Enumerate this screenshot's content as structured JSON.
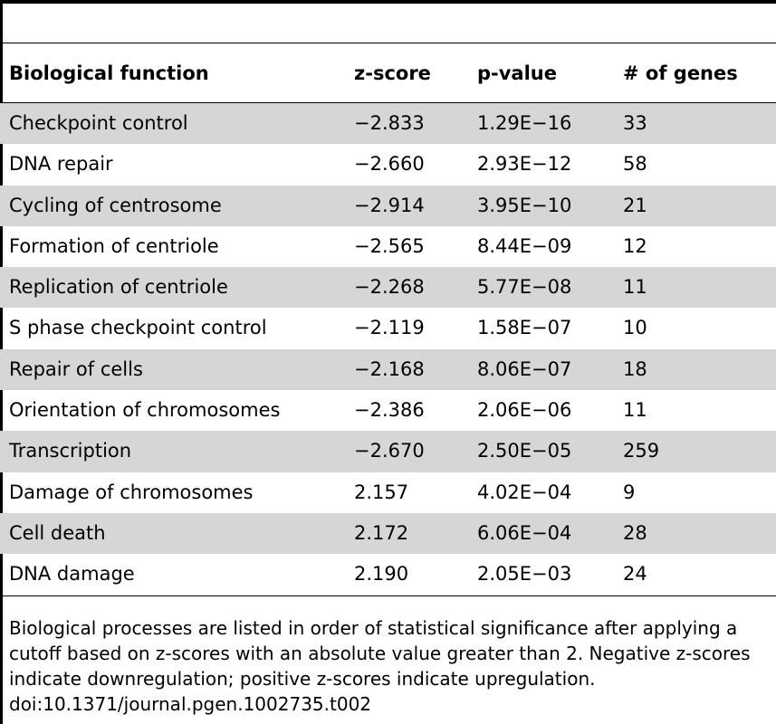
{
  "table": {
    "columns": {
      "function": "Biological function",
      "z_score": "z-score",
      "p_value": "p-value",
      "genes": "# of genes"
    },
    "rows": [
      {
        "function": "Checkpoint control",
        "z_score": "−2.833",
        "p_value": "1.29E−16",
        "genes": "33"
      },
      {
        "function": "DNA repair",
        "z_score": "−2.660",
        "p_value": "2.93E−12",
        "genes": "58"
      },
      {
        "function": "Cycling of centrosome",
        "z_score": "−2.914",
        "p_value": "3.95E−10",
        "genes": "21"
      },
      {
        "function": "Formation of centriole",
        "z_score": "−2.565",
        "p_value": "8.44E−09",
        "genes": "12"
      },
      {
        "function": "Replication of centriole",
        "z_score": "−2.268",
        "p_value": "5.77E−08",
        "genes": "11"
      },
      {
        "function": "S phase checkpoint control",
        "z_score": "−2.119",
        "p_value": "1.58E−07",
        "genes": "10"
      },
      {
        "function": "Repair of cells",
        "z_score": "−2.168",
        "p_value": "8.06E−07",
        "genes": "18"
      },
      {
        "function": "Orientation of chromosomes",
        "z_score": "−2.386",
        "p_value": "2.06E−06",
        "genes": "11"
      },
      {
        "function": "Transcription",
        "z_score": "−2.670",
        "p_value": "2.50E−05",
        "genes": "259"
      },
      {
        "function": "Damage of chromosomes",
        "z_score": "2.157",
        "p_value": "4.02E−04",
        "genes": "9"
      },
      {
        "function": "Cell death",
        "z_score": "2.172",
        "p_value": "6.06E−04",
        "genes": "28"
      },
      {
        "function": "DNA damage",
        "z_score": "2.190",
        "p_value": "2.05E−03",
        "genes": "24"
      }
    ],
    "shade_color": "#d6d6d6"
  },
  "footnote": {
    "text": "Biological processes are listed in order of statistical significance after applying a cutoff based on z-scores with an absolute value greater than 2. Negative z-scores indicate downregulation; positive z-scores indicate upregulation.",
    "doi": "doi:10.1371/journal.pgen.1002735.t002"
  }
}
